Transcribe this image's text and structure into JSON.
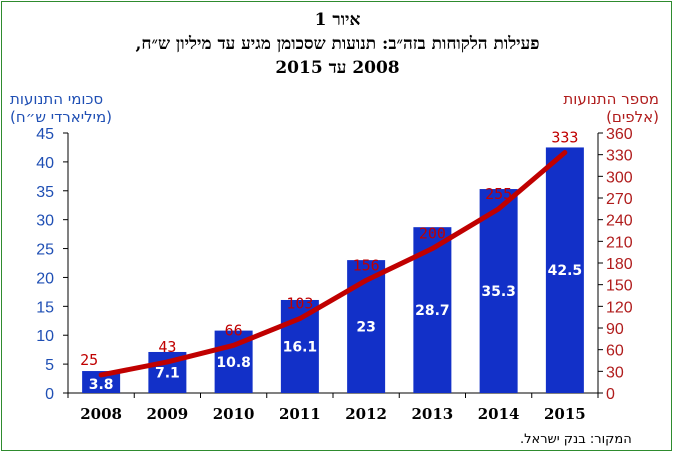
{
  "figure": {
    "title_line1": "איור 1",
    "title_line2": "פעילות הלקוחות בזה״ב: תנועות שסכומן מגיע עד מיליון ש״ח,",
    "title_line3": "2008 עד 2015",
    "source": "המקור: בנק ישראל."
  },
  "colors": {
    "bars": "#1230c8",
    "line": "#c00000",
    "left_axis": "#1f4fb4",
    "right_axis": "#b01c1c",
    "frame": "#2e8b2e"
  },
  "chart_data": {
    "type": "bar",
    "categories": [
      "2008",
      "2009",
      "2010",
      "2011",
      "2012",
      "2013",
      "2014",
      "2015"
    ],
    "series": [
      {
        "type": "bar",
        "axis": "left",
        "values": [
          3.8,
          7.1,
          10.8,
          16.1,
          23,
          28.7,
          35.3,
          42.5
        ]
      },
      {
        "type": "line",
        "axis": "right",
        "values": [
          25,
          43,
          66,
          103,
          156,
          200,
          255,
          333
        ]
      }
    ],
    "ylabel_left_line1": "סכומי התנועות",
    "ylabel_left_line2": "(מיליארדי ש״ח)",
    "ylabel_right_line1": "מספר התנועות",
    "ylabel_right_line2": "(אלפים)",
    "ylim_left": [
      0,
      45
    ],
    "yticks_left": [
      0,
      5,
      10,
      15,
      20,
      25,
      30,
      35,
      40,
      45
    ],
    "ylim_right": [
      0,
      360
    ],
    "yticks_right": [
      0,
      30,
      60,
      90,
      120,
      150,
      180,
      210,
      240,
      270,
      300,
      330,
      360
    ],
    "grid": false,
    "legend": "none"
  }
}
